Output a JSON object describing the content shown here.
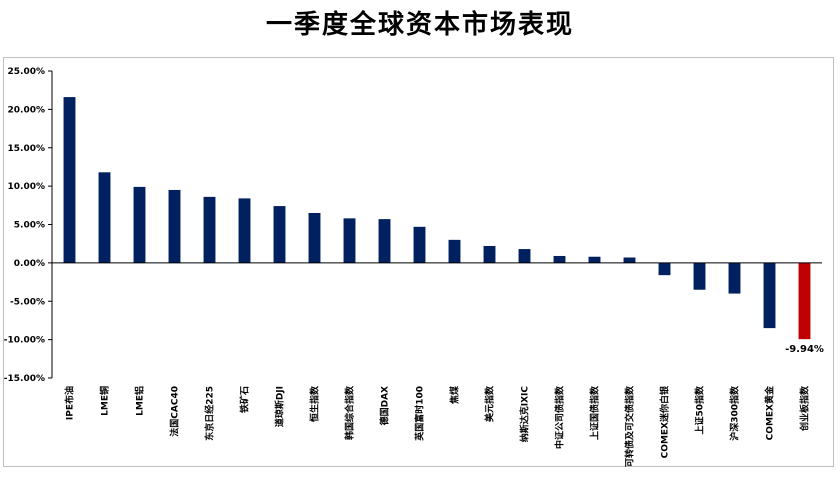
{
  "title": "一季度全球资本市场表现",
  "chart_data": {
    "type": "bar",
    "title": "一季度全球资本市场表现",
    "categories": [
      "IPE布油",
      "LME铜",
      "LME铝",
      "法国CAC40",
      "东京日经225",
      "铁矿石",
      "道琼斯DJI",
      "恒生指数",
      "韩国综合指数",
      "德国DAX",
      "英国富时100",
      "焦煤",
      "美元指数",
      "纳斯达克IXIC",
      "中证公司债指数",
      "上证国债指数",
      "可转债及可交债指数",
      "COMEX迷你白银",
      "上证50指数",
      "沪深300指数",
      "COMEX黄金",
      "创业板指数"
    ],
    "values": [
      21.6,
      11.8,
      9.9,
      9.5,
      8.6,
      8.4,
      7.4,
      6.5,
      5.8,
      5.7,
      4.7,
      3.0,
      2.2,
      1.8,
      0.9,
      0.8,
      0.7,
      -1.6,
      -3.5,
      -4.0,
      -8.5,
      -9.94
    ],
    "unit": "%",
    "ylim": [
      -15,
      25
    ],
    "yticks": [
      "25.00%",
      "20.00%",
      "15.00%",
      "10.00%",
      "5.00%",
      "0.00%",
      "-5.00%",
      "-10.00%",
      "-15.00%"
    ],
    "ytick_values": [
      25,
      20,
      15,
      10,
      5,
      0,
      -5,
      -10,
      -15
    ],
    "data_labels": [
      {
        "index": 21,
        "text": "-9.94%"
      }
    ],
    "colors": {
      "default": "#002060",
      "highlight": "#c00000",
      "highlight_index": 21
    },
    "grid": false,
    "legend": "none"
  }
}
